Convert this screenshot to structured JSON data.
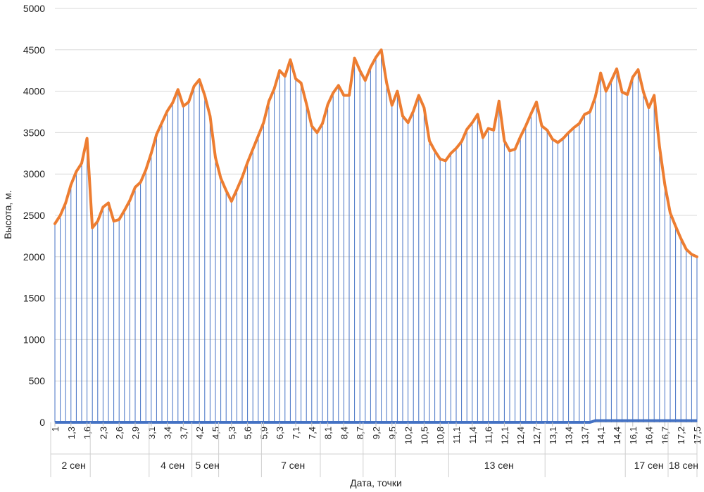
{
  "chart_data": {
    "type": "area",
    "title": "",
    "xlabel": "Дата, точки",
    "ylabel": "Высота, м.",
    "ylim": [
      0,
      5000
    ],
    "yticks": [
      "0",
      "500",
      "1000",
      "1500",
      "2000",
      "2500",
      "3000",
      "3500",
      "4000",
      "4500",
      "5000"
    ],
    "grid": true,
    "colors": {
      "line": "#ED7D31",
      "drops": "#4472C4",
      "base": "#4472C4",
      "grid": "#d9d9d9"
    },
    "x_tick_labels": [
      {
        "i": 0,
        "label": "1"
      },
      {
        "i": 3,
        "label": "1,3"
      },
      {
        "i": 6,
        "label": "1,6"
      },
      {
        "i": 9,
        "label": "2,3"
      },
      {
        "i": 12,
        "label": "2,6"
      },
      {
        "i": 15,
        "label": "2,9"
      },
      {
        "i": 18,
        "label": "3,1"
      },
      {
        "i": 21,
        "label": "3,4"
      },
      {
        "i": 24,
        "label": "3,7"
      },
      {
        "i": 27,
        "label": "4,2"
      },
      {
        "i": 30,
        "label": "4,5"
      },
      {
        "i": 33,
        "label": "5,3"
      },
      {
        "i": 36,
        "label": "5,6"
      },
      {
        "i": 39,
        "label": "5,9"
      },
      {
        "i": 42,
        "label": "6,3"
      },
      {
        "i": 45,
        "label": "7,1"
      },
      {
        "i": 48,
        "label": "7,4"
      },
      {
        "i": 51,
        "label": "8,1"
      },
      {
        "i": 54,
        "label": "8,4"
      },
      {
        "i": 57,
        "label": "8,7"
      },
      {
        "i": 60,
        "label": "9,2"
      },
      {
        "i": 63,
        "label": "9,5"
      },
      {
        "i": 66,
        "label": "10,2"
      },
      {
        "i": 69,
        "label": "10,5"
      },
      {
        "i": 72,
        "label": "10,8"
      },
      {
        "i": 75,
        "label": "11,1"
      },
      {
        "i": 78,
        "label": "11,4"
      },
      {
        "i": 81,
        "label": "11,6"
      },
      {
        "i": 84,
        "label": "12,1"
      },
      {
        "i": 87,
        "label": "12,4"
      },
      {
        "i": 90,
        "label": "12,7"
      },
      {
        "i": 93,
        "label": "13,1"
      },
      {
        "i": 96,
        "label": "13,4"
      },
      {
        "i": 99,
        "label": "13,7"
      },
      {
        "i": 102,
        "label": "14,1"
      },
      {
        "i": 105,
        "label": "14,4"
      },
      {
        "i": 108,
        "label": "16,1"
      },
      {
        "i": 111,
        "label": "16,4"
      },
      {
        "i": 114,
        "label": "16,7"
      },
      {
        "i": 117,
        "label": "17,2"
      },
      {
        "i": 120,
        "label": "17,5"
      }
    ],
    "groups": [
      {
        "label": "2 сен",
        "start": 0,
        "end": 7
      },
      {
        "label": "",
        "start": 7,
        "end": 18
      },
      {
        "label": "4 сен",
        "start": 18,
        "end": 26
      },
      {
        "label": "5 сен",
        "start": 26,
        "end": 31
      },
      {
        "label": "",
        "start": 31,
        "end": 39
      },
      {
        "label": "7 сен",
        "start": 39,
        "end": 50
      },
      {
        "label": "",
        "start": 50,
        "end": 58
      },
      {
        "label": "",
        "start": 58,
        "end": 64
      },
      {
        "label": "",
        "start": 64,
        "end": 74
      },
      {
        "label": "13 сен",
        "start": 74,
        "end": 92
      },
      {
        "label": "",
        "start": 92,
        "end": 107
      },
      {
        "label": "17 сен",
        "start": 107,
        "end": 115
      },
      {
        "label": "18 сен",
        "start": 115,
        "end": 121
      }
    ],
    "series": [
      {
        "values": [
          2400,
          2500,
          2650,
          2870,
          3030,
          3130,
          3430,
          2350,
          2430,
          2600,
          2650,
          2430,
          2450,
          2560,
          2680,
          2840,
          2900,
          3050,
          3250,
          3480,
          3620,
          3760,
          3860,
          4020,
          3820,
          3870,
          4060,
          4140,
          3950,
          3700,
          3200,
          2950,
          2800,
          2670,
          2810,
          2960,
          3140,
          3300,
          3460,
          3620,
          3880,
          4030,
          4250,
          4180,
          4380,
          4150,
          4100,
          3850,
          3580,
          3500,
          3610,
          3840,
          3980,
          4070,
          3950,
          3950,
          4400,
          4250,
          4130,
          4290,
          4410,
          4500,
          4100,
          3830,
          4000,
          3700,
          3620,
          3760,
          3950,
          3800,
          3400,
          3280,
          3180,
          3160,
          3250,
          3310,
          3390,
          3540,
          3620,
          3720,
          3440,
          3550,
          3530,
          3880,
          3400,
          3280,
          3300,
          3450,
          3580,
          3730,
          3870,
          3580,
          3530,
          3420,
          3380,
          3430,
          3500,
          3560,
          3610,
          3720,
          3750,
          3930,
          4220,
          4000,
          4130,
          4270,
          3990,
          3960,
          4170,
          4260,
          3990,
          3800,
          3950,
          3330,
          2870,
          2530,
          2370,
          2220,
          2090,
          2030,
          2000
        ]
      },
      {
        "values": [
          0,
          0,
          0,
          0,
          0,
          0,
          0,
          0,
          0,
          0,
          0,
          0,
          0,
          0,
          0,
          0,
          0,
          0,
          0,
          0,
          0,
          0,
          0,
          0,
          0,
          0,
          0,
          0,
          0,
          0,
          0,
          0,
          0,
          0,
          0,
          0,
          0,
          0,
          0,
          0,
          0,
          0,
          0,
          0,
          0,
          0,
          0,
          0,
          0,
          0,
          0,
          0,
          0,
          0,
          0,
          0,
          0,
          0,
          0,
          0,
          0,
          0,
          0,
          0,
          0,
          0,
          0,
          0,
          0,
          0,
          0,
          0,
          0,
          0,
          0,
          0,
          0,
          0,
          0,
          0,
          0,
          0,
          0,
          0,
          0,
          0,
          0,
          0,
          0,
          0,
          0,
          0,
          0,
          0,
          0,
          0,
          0,
          0,
          0,
          0,
          0,
          20,
          20,
          20,
          20,
          20,
          20,
          20,
          20,
          20,
          20,
          20,
          20,
          20,
          20,
          20,
          20,
          20,
          20,
          20,
          20
        ]
      }
    ]
  }
}
